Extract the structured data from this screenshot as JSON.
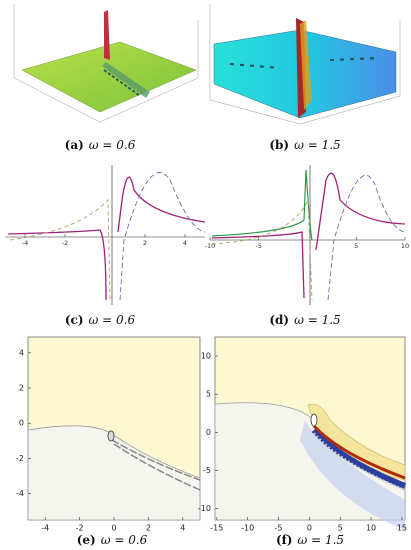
{
  "panels": [
    {
      "label": "(a)",
      "text": "ω = 0.6"
    },
    {
      "label": "(b)",
      "text": "ω = 1.5"
    },
    {
      "label": "(c)",
      "text": "ω = 0.6",
      "xticks": [
        -4,
        -2,
        2,
        4
      ],
      "xlim": [
        -5,
        5
      ]
    },
    {
      "label": "(d)",
      "text": "ω = 1.5",
      "xticks": [
        -10,
        -5,
        5,
        10
      ],
      "xlim": [
        -10,
        10
      ]
    },
    {
      "label": "(e)",
      "text": "ω = 0.6",
      "xticks": [
        -4,
        -2,
        0,
        2,
        4
      ],
      "xlim": [
        -5,
        5
      ],
      "yticks": [
        4,
        2,
        0,
        -2,
        -4
      ],
      "ylim": [
        -5.5,
        4.9
      ]
    },
    {
      "label": "(f)",
      "text": "ω = 1.5",
      "xticks": [
        -15,
        -10,
        -5,
        0,
        5,
        10,
        15
      ],
      "xlim": [
        -15.3,
        15.5
      ],
      "yticks": [
        10,
        5,
        0,
        -5,
        -10
      ],
      "ylim": [
        -11.5,
        12.5
      ]
    }
  ]
}
